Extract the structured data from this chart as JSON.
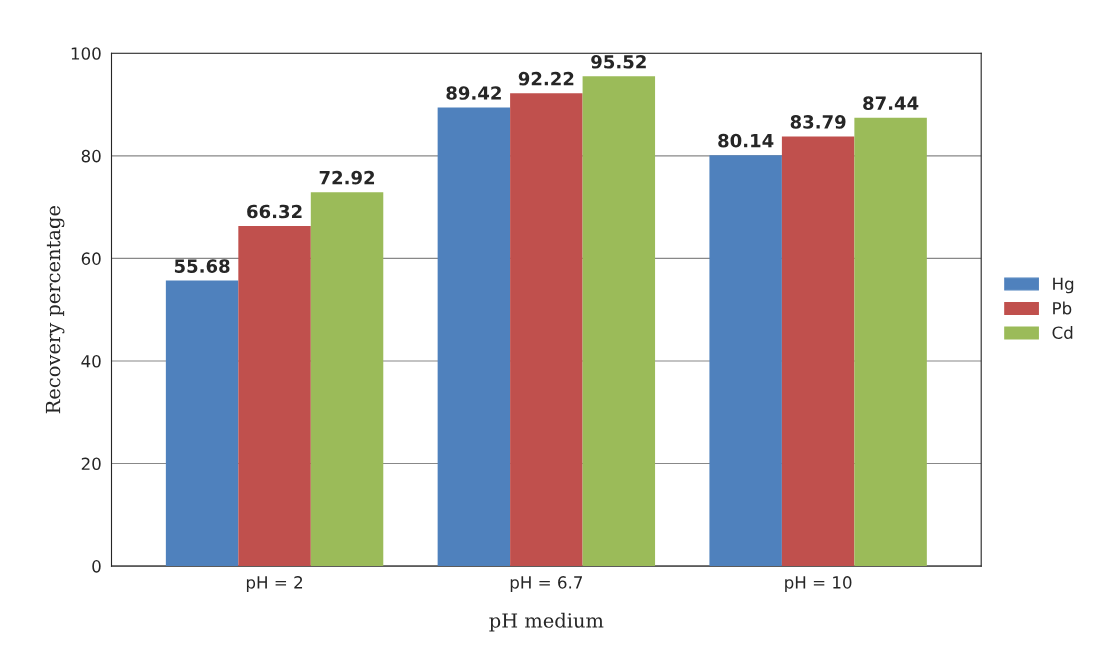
{
  "chart_data": {
    "type": "bar",
    "xlabel": "pH medium",
    "ylabel": "Recovery percentage",
    "categories": [
      "pH = 2",
      "pH = 6.7",
      "pH = 10"
    ],
    "series": [
      {
        "name": "Hg",
        "color": "#4f81bd",
        "values": [
          55.68,
          89.42,
          80.14
        ]
      },
      {
        "name": "Pb",
        "color": "#c0504d",
        "values": [
          66.32,
          92.22,
          83.79
        ]
      },
      {
        "name": "Cd",
        "color": "#9bbb59",
        "values": [
          72.92,
          95.52,
          87.44
        ]
      }
    ],
    "ylim": [
      0,
      100
    ],
    "yticks": [
      0,
      20,
      40,
      60,
      80,
      100
    ],
    "grid": "y",
    "legend": "right",
    "data_labels": true
  }
}
